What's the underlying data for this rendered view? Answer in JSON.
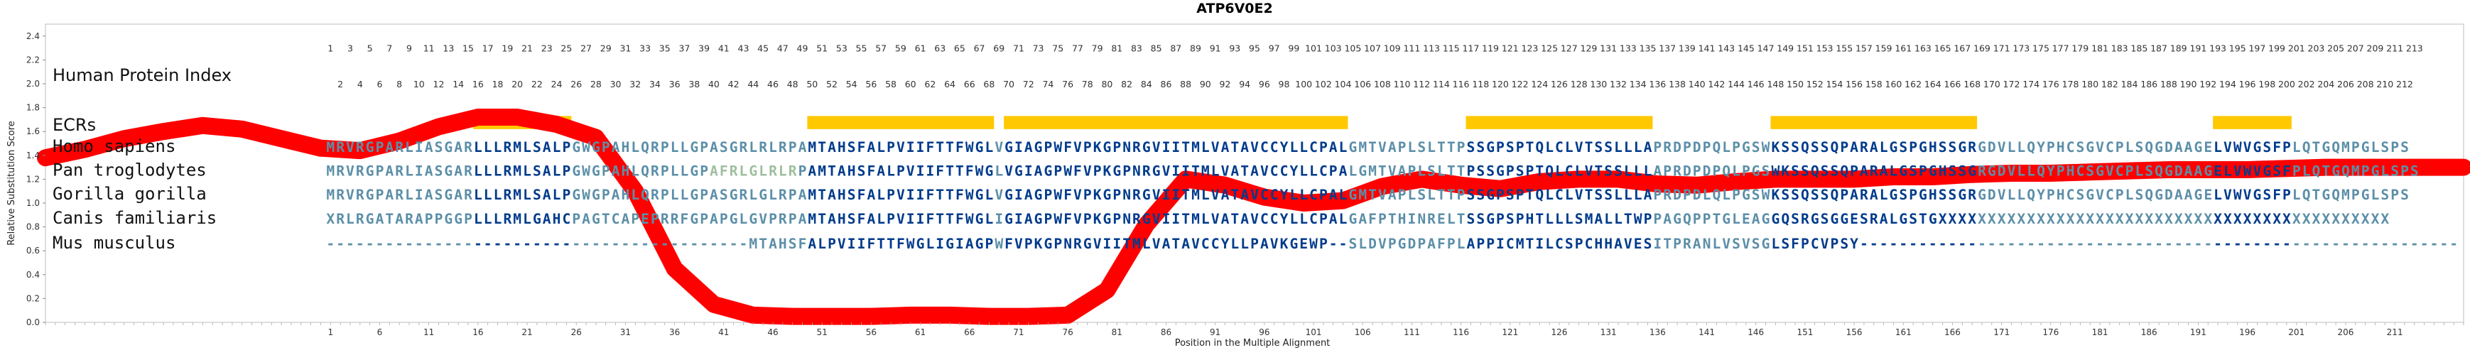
{
  "chart_data": {
    "type": "line",
    "title": "ATP6V0E2",
    "xlabel": "Position in the Multiple Alignment",
    "ylabel": "Relative Substitution Score",
    "ylim": [
      0,
      2.5
    ],
    "y_ticks": [
      "0.0",
      "0.2",
      "0.4",
      "0.6",
      "0.8",
      "1.0",
      "1.2",
      "1.4",
      "1.6",
      "1.8",
      "2.0",
      "2.2",
      "2.4"
    ],
    "y_tick_values": [
      0,
      0.2,
      0.4,
      0.6,
      0.8,
      1.0,
      1.2,
      1.4,
      1.6,
      1.8,
      2.0,
      2.2,
      2.4
    ],
    "x_ticks": [
      1,
      6,
      11,
      16,
      21,
      26,
      31,
      36,
      41,
      46,
      51,
      56,
      61,
      66,
      71,
      76,
      81,
      86,
      91,
      96,
      101,
      106,
      111,
      116,
      121,
      126,
      131,
      136,
      141,
      146,
      151,
      156,
      161,
      166,
      171,
      176,
      181,
      186,
      191,
      196,
      201,
      206,
      211
    ],
    "xlim": [
      -28,
      218
    ],
    "row_labels": {
      "human_index": "Human Protein Index",
      "ecrs": "ECRs"
    },
    "human_index_top": [
      1,
      3,
      5,
      7,
      9,
      11,
      13,
      15,
      17,
      19,
      21,
      23,
      25,
      27,
      29,
      31,
      33,
      35,
      37,
      39,
      41,
      43,
      45,
      47,
      49,
      51,
      53,
      55,
      57,
      59,
      61,
      63,
      65,
      67,
      69,
      71,
      73,
      75,
      77,
      79,
      81,
      83,
      85,
      87,
      89,
      91,
      93,
      95,
      97,
      99,
      101,
      103,
      105,
      107,
      109,
      111,
      113,
      115,
      117,
      119,
      121,
      123,
      125,
      127,
      129,
      131,
      133,
      135,
      137,
      139,
      141,
      143,
      145,
      147,
      149,
      151,
      153,
      155,
      157,
      159,
      161,
      163,
      165,
      167,
      169,
      171,
      173,
      175,
      177,
      179,
      181,
      183,
      185,
      187,
      189,
      191,
      193,
      195,
      197,
      199,
      201,
      203,
      205,
      207,
      209,
      211,
      213
    ],
    "human_index_bottom": [
      2,
      4,
      6,
      8,
      10,
      12,
      14,
      16,
      18,
      20,
      22,
      24,
      26,
      28,
      30,
      32,
      34,
      36,
      38,
      40,
      42,
      44,
      46,
      48,
      50,
      52,
      54,
      56,
      58,
      60,
      62,
      64,
      66,
      68,
      70,
      72,
      74,
      76,
      78,
      80,
      82,
      84,
      86,
      88,
      90,
      92,
      94,
      96,
      98,
      100,
      102,
      104,
      106,
      108,
      110,
      112,
      114,
      116,
      118,
      120,
      122,
      124,
      126,
      128,
      130,
      132,
      134,
      136,
      138,
      140,
      142,
      144,
      146,
      148,
      150,
      152,
      154,
      156,
      158,
      160,
      162,
      164,
      166,
      168,
      170,
      172,
      174,
      176,
      178,
      180,
      182,
      184,
      186,
      188,
      190,
      192,
      194,
      196,
      198,
      200,
      202,
      204,
      206,
      208,
      210,
      212
    ],
    "ecr_color": "#FFC800",
    "line_color": "#FF0000",
    "ecrs": [
      [
        16,
        25
      ],
      [
        50,
        68
      ],
      [
        70,
        104
      ],
      [
        117,
        135
      ],
      [
        148,
        168
      ],
      [
        193,
        200
      ]
    ],
    "sequences": [
      {
        "species": "Homo sapiens",
        "seq": "MRVRGPARLIASGARLLLRMLSALPGWGPAHLQRPLLGPASGRLRLRPAMTAHSFALPVIIFTTFWGLVGIAGPWFVPKGPNRGVIITMLVATAVCCYLLCPALGMTVAPLSLTTPSSGPSPTQLCLVTSSLLLAPRDPDPQLPGSWKSSQSSQPARALGSPGHSSGRGDVLLQYPHCSGVCPLSQGDAAGELVWVGSFPLQTGQMPGLSPS"
      },
      {
        "species": "Pan troglodytes",
        "seq": "MRVRGPARLIASGARLLLRMLSALPGWGPAHLQRPLLGPAFRLGLRLRPAMTAHSFALPVIIFTTFWGLVGIAGPWFVPKGPNRGVIITMLVATAVCCYLLCPALGMTVAPLSLTTPSSGPSPTQLCLVTSSLLLAPRDPDPQLPGSWKSSQSSQPARALGSPGHSSGRGDVLLQYPHCSGVCPLSQGDAAGELVWVGSFPLQTGQMPGLSPS"
      },
      {
        "species": "Gorilla gorilla",
        "seq": "MRVRGPARLIASGARLLLRMLSALPGWGPAHLQRPLLGPASGRLGLRPAMTAHSFALPVIIFTTFWGLVGIAGPWFVPKGPNRGVIITMLVATAVCCYLLCPALGMTVAPLSLTTPSSGPSPTQLCLVTSSLLLAPRDPDLQLPGSWKSSQSSQPARALGSPGHSSGRGDVLLQYPHCSGVCPLSQGDAAGELVWVGSFPLQTGQMPGLSPS"
      },
      {
        "species": "Canis familiaris",
        "seq": "XRLRGATARAPPGGPLLLRMLGAHCPAGTCAPEPRRFGPAPGLGVPRPAMTAHSFALPVIIFTTFWGLIGIAGPWFVPKGPNRGVIITMLVATAVCCYLLCPALGAFPTHINRELTSSGPSPHTLLLSMALLTWPPAGQPPTGLEAGGQSRGSGGESRALGSTGXXXXXXXXXXXXXXXXXXXXXXXXXXXXXXXXXXXXXXXXXXXXXX"
      },
      {
        "species": "Mus musculus",
        "seq": "-------------------------------------------MTAHSFALPVIIFTTFWGLIGIAGPWFVPKGPNRGVIITMLVATAVCCYLLPAVKGEWP--SLDVPGDPAFPLAPPICMTILCSPCHHAVESITPRANLVSVSGLSFPCVPSY-------------------------------------------------------------"
      }
    ],
    "score_x": [
      -28,
      -24,
      -20,
      -16,
      -12,
      -8,
      -4,
      0,
      4,
      8,
      12,
      16,
      20,
      24,
      28,
      32,
      36,
      40,
      44,
      48,
      52,
      56,
      60,
      64,
      68,
      72,
      76,
      80,
      84,
      88,
      92,
      96,
      100,
      104,
      108,
      112,
      116,
      120,
      124,
      128,
      132,
      136,
      140,
      144,
      148,
      152,
      156,
      160,
      164,
      168,
      172,
      176,
      180,
      184,
      188,
      192,
      196,
      200,
      204,
      208,
      212,
      216,
      218
    ],
    "score_y": [
      1.38,
      1.45,
      1.54,
      1.6,
      1.65,
      1.62,
      1.54,
      1.46,
      1.44,
      1.52,
      1.64,
      1.72,
      1.72,
      1.66,
      1.55,
      1.1,
      0.45,
      0.15,
      0.06,
      0.05,
      0.05,
      0.05,
      0.06,
      0.06,
      0.05,
      0.05,
      0.06,
      0.27,
      0.82,
      1.2,
      1.15,
      1.05,
      1.0,
      1.02,
      1.14,
      1.2,
      1.15,
      1.12,
      1.18,
      1.2,
      1.2,
      1.16,
      1.15,
      1.18,
      1.2,
      1.2,
      1.2,
      1.22,
      1.22,
      1.24,
      1.25,
      1.25,
      1.26,
      1.27,
      1.28,
      1.28,
      1.28,
      1.29,
      1.3,
      1.3,
      1.3,
      1.3,
      1.3
    ]
  }
}
